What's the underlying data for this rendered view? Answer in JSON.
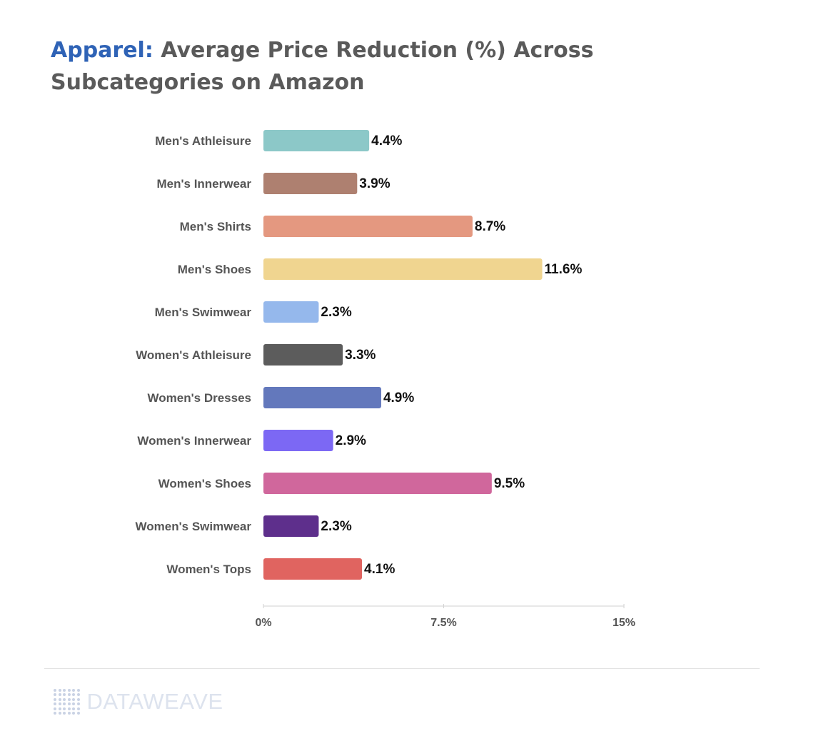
{
  "title": {
    "lead": "Apparel:",
    "rest": "Average Price Reduction (%) Across Subcategories on Amazon"
  },
  "chart_data": {
    "type": "bar",
    "orientation": "horizontal",
    "title": "Apparel: Average Price Reduction (%) Across Subcategories on Amazon",
    "categories": [
      "Men's Athleisure",
      "Men's Innerwear",
      "Men's Shirts",
      "Men's Shoes",
      "Men's Swimwear",
      "Women's Athleisure",
      "Women's Dresses",
      "Women's Innerwear",
      "Women's Shoes",
      "Women's Swimwear",
      "Women's Tops"
    ],
    "values": [
      4.4,
      3.9,
      8.7,
      11.6,
      2.3,
      3.3,
      4.9,
      2.9,
      9.5,
      2.3,
      4.1
    ],
    "value_labels": [
      "4.4%",
      "3.9%",
      "8.7%",
      "11.6%",
      "2.3%",
      "3.3%",
      "4.9%",
      "2.9%",
      "9.5%",
      "2.3%",
      "4.1%"
    ],
    "colors": [
      "#8cc8c8",
      "#ae8070",
      "#e49880",
      "#f0d590",
      "#95b8ec",
      "#5c5c5c",
      "#6378bc",
      "#7c68f4",
      "#d0679c",
      "#5e2f8c",
      "#e06460"
    ],
    "xlim": [
      0,
      15
    ],
    "xticks": [
      0,
      7.5,
      15
    ],
    "xtick_labels": [
      "0%",
      "7.5%",
      "15%"
    ],
    "grid": false,
    "legend": "none"
  },
  "brand": {
    "logo_text": "DATAWEAVE"
  }
}
